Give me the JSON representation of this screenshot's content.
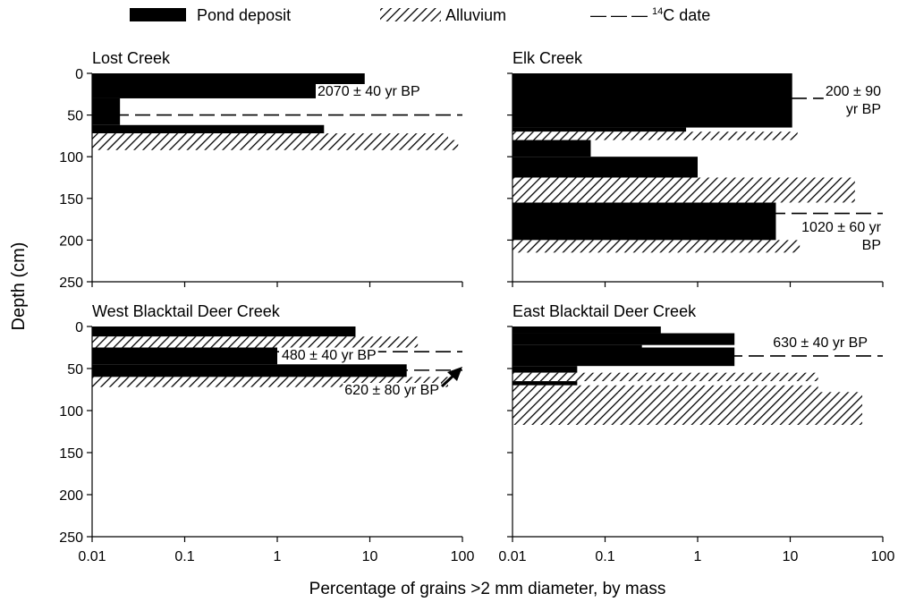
{
  "legend": {
    "pond_label": "Pond deposit",
    "alluvium_label": "Alluvium",
    "date_prefix": "— — — ",
    "date_sup": "14",
    "date_label": "C date"
  },
  "ylabel": "Depth (cm)",
  "xlabel": "Percentage of grains >2 mm diameter, by mass",
  "xticks": [
    "0.01",
    "0.1",
    "1",
    "10",
    "100"
  ],
  "yticks": [
    "0",
    "50",
    "100",
    "150",
    "200",
    "250"
  ],
  "colors": {
    "pond": "#000000",
    "alluvium_hatch": "#000000",
    "background": "#ffffff"
  },
  "chart_data": [
    {
      "type": "bar",
      "title": "Lost Creek",
      "xscale": "log",
      "xlim": [
        0.01,
        100
      ],
      "ylim": [
        250,
        0
      ],
      "ylabel": "Depth (cm)",
      "xlabel": "Percentage of grains >2 mm diameter, by mass",
      "intervals": [
        {
          "material": "pond",
          "top": 0,
          "bottom": 30,
          "value": 8.8
        },
        {
          "material": "pond",
          "top": 30,
          "bottom": 62,
          "value": 0.02
        },
        {
          "material": "pond",
          "top": 62,
          "bottom": 72,
          "value": 3.2
        },
        {
          "material": "alluvium",
          "top": 72,
          "bottom": 80,
          "value": 70
        },
        {
          "material": "alluvium",
          "top": 80,
          "bottom": 92,
          "value": 90
        }
      ],
      "dates": [
        {
          "depth": 50,
          "label": "2070 ± 40 yr BP"
        }
      ]
    },
    {
      "type": "bar",
      "title": "Elk Creek",
      "xscale": "log",
      "xlim": [
        0.01,
        100
      ],
      "ylim": [
        250,
        0
      ],
      "intervals": [
        {
          "material": "pond",
          "top": 0,
          "bottom": 65,
          "value": 10.5
        },
        {
          "material": "pond",
          "top": 65,
          "bottom": 70,
          "value": 0.75
        },
        {
          "material": "alluvium",
          "top": 70,
          "bottom": 80,
          "value": 12
        },
        {
          "material": "pond",
          "top": 80,
          "bottom": 100,
          "value": 0.07
        },
        {
          "material": "pond",
          "top": 100,
          "bottom": 125,
          "value": 1
        },
        {
          "material": "alluvium",
          "top": 125,
          "bottom": 155,
          "value": 50
        },
        {
          "material": "pond",
          "top": 155,
          "bottom": 200,
          "value": 7
        },
        {
          "material": "alluvium",
          "top": 200,
          "bottom": 215,
          "value": 35
        }
      ],
      "dates": [
        {
          "depth": 30,
          "label": "200 ± 90 yr BP",
          "lines": [
            "200 ± 90",
            "yr BP"
          ]
        },
        {
          "depth": 168,
          "label": "1020 ± 60 yr BP",
          "lines": [
            "1020 ± 60 yr",
            "BP"
          ]
        }
      ]
    },
    {
      "type": "bar",
      "title": "West Blacktail Deer Creek",
      "xscale": "log",
      "xlim": [
        0.01,
        100
      ],
      "ylim": [
        250,
        0
      ],
      "intervals": [
        {
          "material": "pond",
          "top": 0,
          "bottom": 12,
          "value": 7
        },
        {
          "material": "alluvium",
          "top": 12,
          "bottom": 25,
          "value": 33
        },
        {
          "material": "pond",
          "top": 25,
          "bottom": 45,
          "value": 1
        },
        {
          "material": "pond",
          "top": 45,
          "bottom": 60,
          "value": 25
        },
        {
          "material": "alluvium",
          "top": 60,
          "bottom": 72,
          "value": 70
        }
      ],
      "dates": [
        {
          "depth": 30,
          "label": "480 ± 40 yr BP"
        },
        {
          "depth": 52,
          "label": "620 ± 80 yr BP"
        }
      ]
    },
    {
      "type": "bar",
      "title": "East Blacktail Deer Creek",
      "xscale": "log",
      "xlim": [
        0.01,
        100
      ],
      "ylim": [
        250,
        0
      ],
      "intervals": [
        {
          "material": "pond",
          "top": 0,
          "bottom": 8,
          "value": 0.4
        },
        {
          "material": "pond",
          "top": 8,
          "bottom": 22,
          "value": 2.5
        },
        {
          "material": "pond",
          "top": 22,
          "bottom": 25,
          "value": 0.25
        },
        {
          "material": "pond",
          "top": 25,
          "bottom": 47,
          "value": 2.5
        },
        {
          "material": "pond",
          "top": 47,
          "bottom": 55,
          "value": 0.05
        },
        {
          "material": "alluvium",
          "top": 55,
          "bottom": 65,
          "value": 20
        },
        {
          "material": "pond",
          "top": 65,
          "bottom": 70,
          "value": 0.05
        },
        {
          "material": "alluvium",
          "top": 70,
          "bottom": 78,
          "value": 20
        },
        {
          "material": "alluvium",
          "top": 78,
          "bottom": 117,
          "value": 60
        }
      ],
      "dates": [
        {
          "depth": 35,
          "label": "630 ± 40 yr BP"
        }
      ]
    }
  ]
}
